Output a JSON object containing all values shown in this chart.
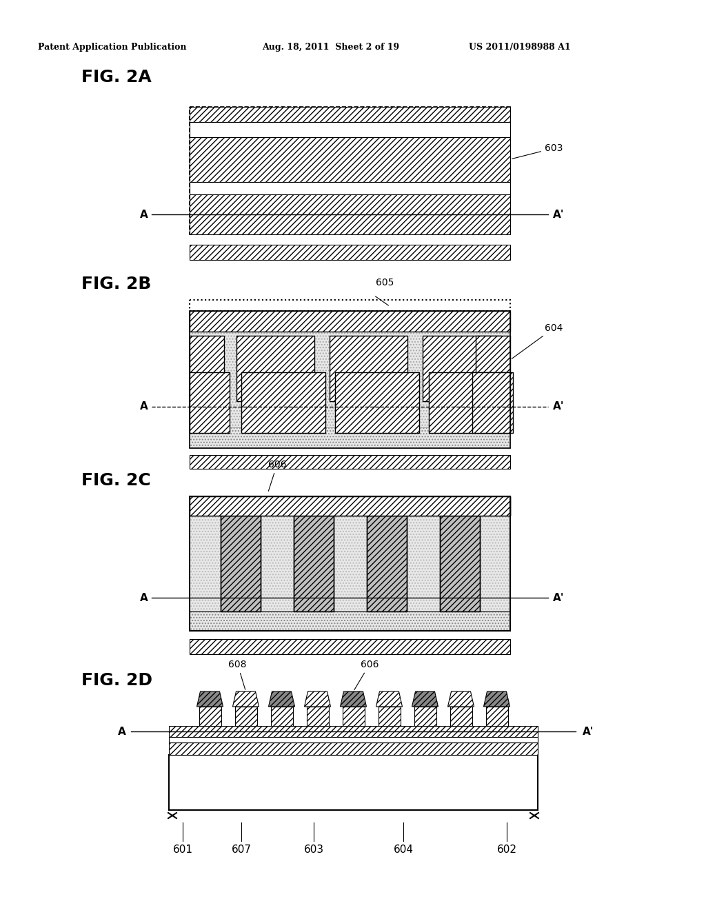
{
  "bg_color": "#ffffff",
  "header_left": "Patent Application Publication",
  "header_mid": "Aug. 18, 2011  Sheet 2 of 19",
  "header_right": "US 2011/0198988 A1",
  "hatch_color": "#000000",
  "line_color": "#000000",
  "fig2a_label": "FIG. 2A",
  "fig2b_label": "FIG. 2B",
  "fig2c_label": "FIG. 2C",
  "fig2d_label": "FIG. 2D"
}
